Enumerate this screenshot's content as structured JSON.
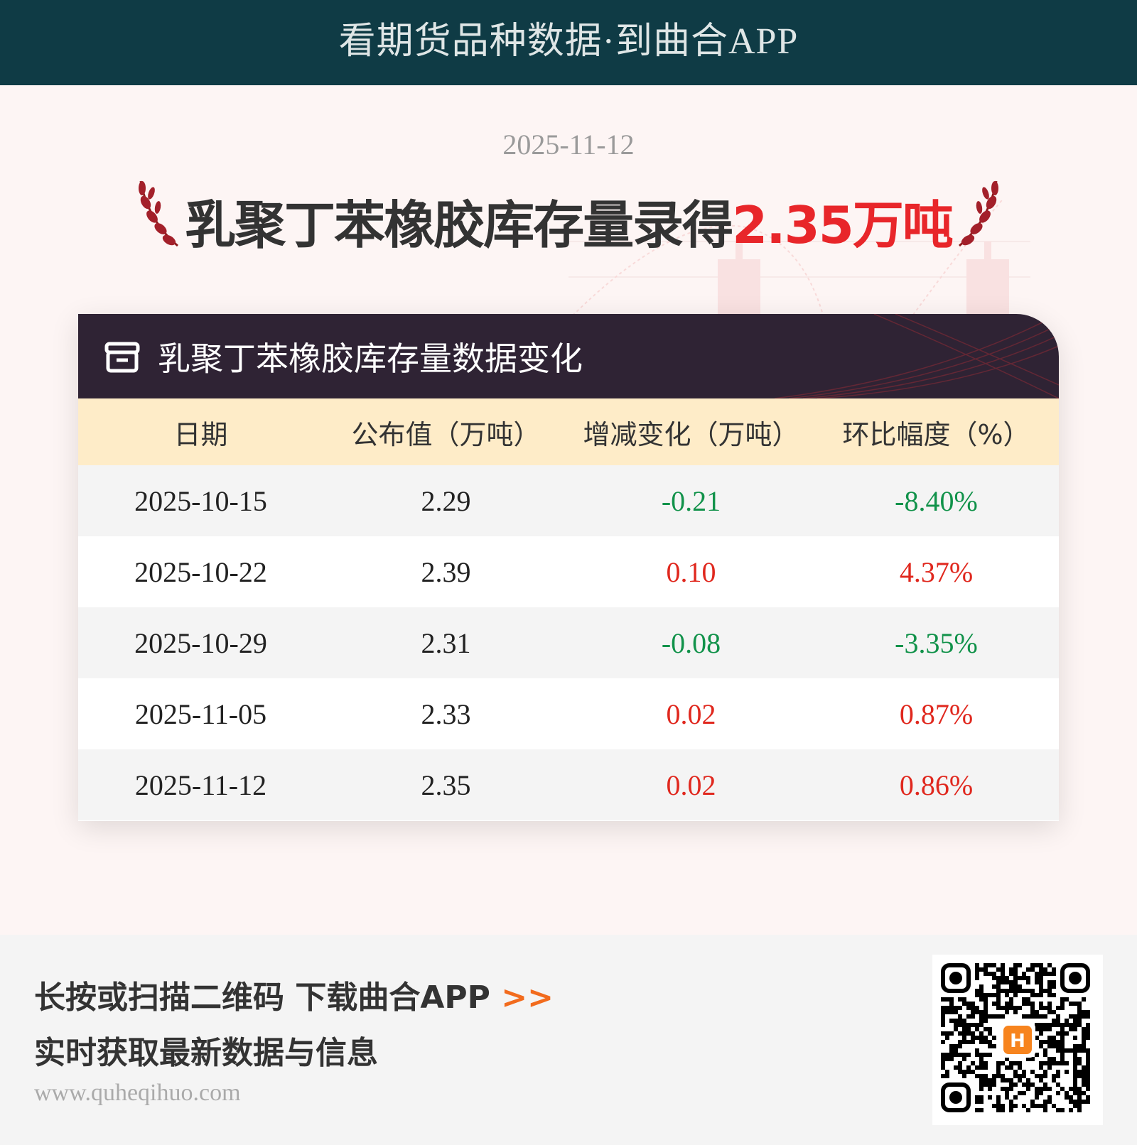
{
  "banner": {
    "text": "看期货品种数据·到曲合APP",
    "bg_color": "#0f3b45"
  },
  "date": "2025-11-12",
  "headline": {
    "prefix": "乳聚丁苯橡胶库存量录得",
    "highlight": "2.35万吨",
    "highlight_color": "#e8262a"
  },
  "card": {
    "title": "乳聚丁苯橡胶库存量数据变化",
    "icon": "archive-box-icon",
    "columns": [
      "日期",
      "公布值（万吨）",
      "增减变化（万吨）",
      "环比幅度（%）"
    ],
    "rows": [
      {
        "date": "2025-10-15",
        "value": "2.29",
        "change": "-0.21",
        "pct": "-8.40%",
        "dir": "down"
      },
      {
        "date": "2025-10-22",
        "value": "2.39",
        "change": "0.10",
        "pct": "4.37%",
        "dir": "up"
      },
      {
        "date": "2025-10-29",
        "value": "2.31",
        "change": "-0.08",
        "pct": "-3.35%",
        "dir": "down"
      },
      {
        "date": "2025-11-05",
        "value": "2.33",
        "change": "0.02",
        "pct": "0.87%",
        "dir": "up"
      },
      {
        "date": "2025-11-12",
        "value": "2.35",
        "change": "0.02",
        "pct": "0.86%",
        "dir": "up"
      }
    ],
    "up_color": "#e0281e",
    "down_color": "#11924a"
  },
  "footer": {
    "line1": "长按或扫描二维码 下载曲合APP",
    "arrow": ">>",
    "line2": "实时获取最新数据与信息",
    "url": "www.quheqihuo.com",
    "qr_icon": "qr-code-icon",
    "qr_logo": "quhe-logo-icon"
  }
}
